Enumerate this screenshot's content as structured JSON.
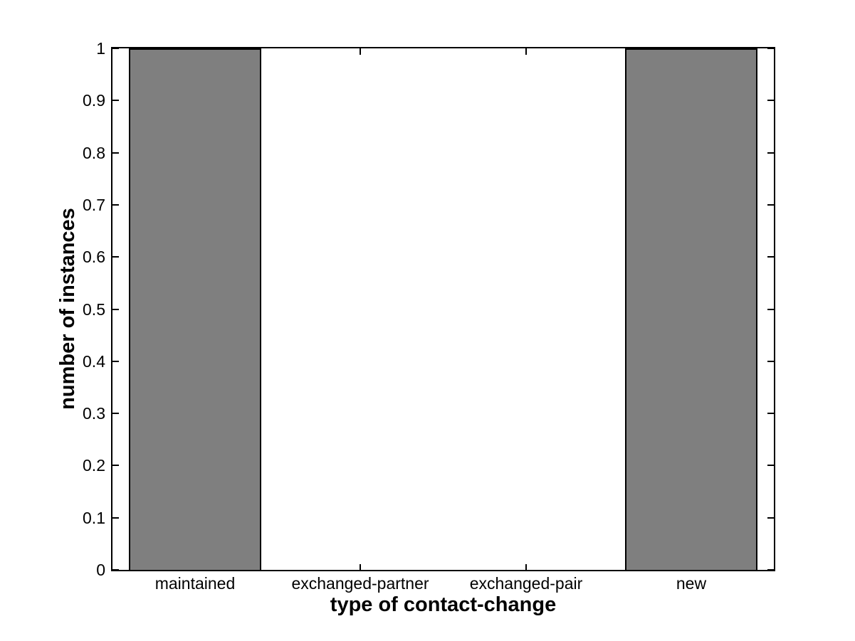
{
  "figure": {
    "background_color": "#FFFFFF"
  },
  "chart_data": {
    "type": "bar",
    "title": "",
    "xlabel": "type of contact-change",
    "ylabel": "number of instances",
    "categories": [
      "maintained",
      "exchanged-partner",
      "exchanged-pair",
      "new"
    ],
    "values": [
      1,
      0,
      0,
      1
    ],
    "ylim": [
      0,
      1
    ],
    "yticks": [
      {
        "value": 0,
        "label": "0"
      },
      {
        "value": 0.1,
        "label": "0.1"
      },
      {
        "value": 0.2,
        "label": "0.2"
      },
      {
        "value": 0.3,
        "label": "0.3"
      },
      {
        "value": 0.4,
        "label": "0.4"
      },
      {
        "value": 0.5,
        "label": "0.5"
      },
      {
        "value": 0.6,
        "label": "0.6"
      },
      {
        "value": 0.7,
        "label": "0.7"
      },
      {
        "value": 0.8,
        "label": "0.8"
      },
      {
        "value": 0.9,
        "label": "0.9"
      },
      {
        "value": 1,
        "label": "1"
      }
    ],
    "bar_fill_color": "#7F7F7F",
    "bar_edge_color": "#000000",
    "axis_color": "#000000",
    "grid": false,
    "legend": null,
    "bar_width_fraction": 0.8,
    "box": true
  }
}
